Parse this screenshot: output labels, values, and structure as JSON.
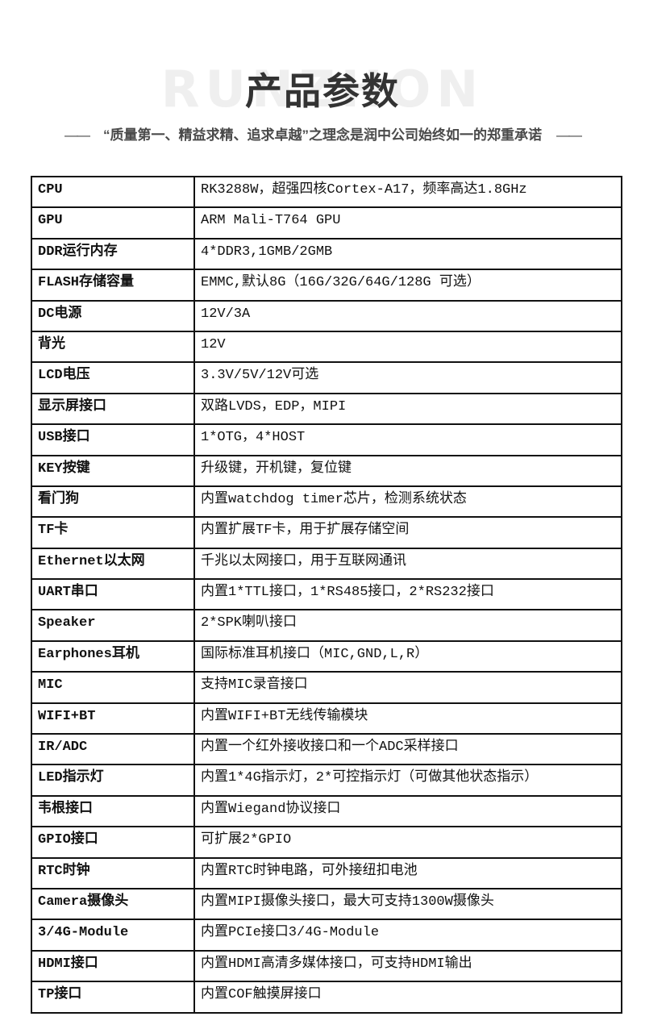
{
  "header": {
    "watermark": "RUNZHON",
    "title": "产品参数",
    "dash_left": "——",
    "dash_right": "——",
    "tagline": "“质量第一、精益求精、追求卓越”之理念是润中公司始终如一的郑重承诺"
  },
  "table": {
    "rows": [
      {
        "label": "CPU",
        "value": "RK3288W，超强四核Cortex-A17，频率高达1.8GHz"
      },
      {
        "label": "GPU",
        "value": "ARM Mali-T764 GPU"
      },
      {
        "label": "DDR运行内存",
        "value": "4*DDR3,1GMB/2GMB"
      },
      {
        "label": "FLASH存储容量",
        "value": "EMMC,默认8G（16G/32G/64G/128G 可选）"
      },
      {
        "label": "DC电源",
        "value": "12V/3A"
      },
      {
        "label": "背光",
        "value": "12V"
      },
      {
        "label": "LCD电压",
        "value": "3.3V/5V/12V可选"
      },
      {
        "label": "显示屏接口",
        "value": "双路LVDS，EDP，MIPI"
      },
      {
        "label": "USB接口",
        "value": "1*OTG，4*HOST"
      },
      {
        "label": "KEY按键",
        "value": "升级键，开机键，复位键"
      },
      {
        "label": "看门狗",
        "value": "内置watchdog timer芯片，检测系统状态"
      },
      {
        "label": "TF卡",
        "value": "内置扩展TF卡，用于扩展存储空间"
      },
      {
        "label": "Ethernet以太网",
        "value": "千兆以太网接口，用于互联网通讯"
      },
      {
        "label": "UART串口",
        "value": "内置1*TTL接口，1*RS485接口，2*RS232接口"
      },
      {
        "label": "Speaker",
        "value": "2*SPK喇叭接口"
      },
      {
        "label": "Earphones耳机",
        "value": "国际标准耳机接口（MIC,GND,L,R）"
      },
      {
        "label": "MIC",
        "value": "支持MIC录音接口"
      },
      {
        "label": "WIFI+BT",
        "value": "内置WIFI+BT无线传输模块"
      },
      {
        "label": "IR/ADC",
        "value": "内置一个红外接收接口和一个ADC采样接口"
      },
      {
        "label": "LED指示灯",
        "value": "内置1*4G指示灯，2*可控指示灯（可做其他状态指示）"
      },
      {
        "label": "韦根接口",
        "value": "内置Wiegand协议接口"
      },
      {
        "label": "GPIO接口",
        "value": "可扩展2*GPIO"
      },
      {
        "label": "RTC时钟",
        "value": "内置RTC时钟电路，可外接纽扣电池"
      },
      {
        "label": "Camera摄像头",
        "value": "内置MIPI摄像头接口，最大可支持1300W摄像头"
      },
      {
        "label": "3/4G-Module",
        "value": "内置PCIe接口3/4G-Module"
      },
      {
        "label": "HDMI接口",
        "value": "内置HDMI高清多媒体接口，可支持HDMI输出"
      },
      {
        "label": "TP接口",
        "value": "内置COF触摸屏接口"
      }
    ]
  }
}
